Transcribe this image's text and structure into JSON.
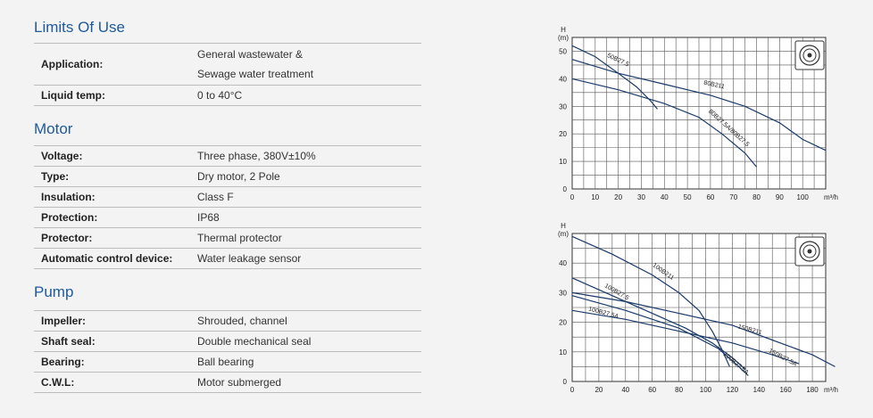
{
  "sections": {
    "limits": {
      "title": "Limits Of Use",
      "rows": [
        {
          "label": "Application:",
          "value_line1": "General wastewater &",
          "value_line2": "Sewage water treatment"
        },
        {
          "label": "Liquid temp:",
          "value": "0 to 40°C"
        }
      ]
    },
    "motor": {
      "title": "Motor",
      "rows": [
        {
          "label": "Voltage:",
          "value": "Three phase, 380V±10%"
        },
        {
          "label": "Type:",
          "value": "Dry motor, 2 Pole"
        },
        {
          "label": "Insulation:",
          "value": "Class F"
        },
        {
          "label": "Protection:",
          "value": "IP68"
        },
        {
          "label": "Protector:",
          "value": "Thermal protector"
        },
        {
          "label": "Automatic control device:",
          "value": "Water leakage sensor"
        }
      ]
    },
    "pump": {
      "title": "Pump",
      "rows": [
        {
          "label": "Impeller:",
          "value": "Shrouded, channel"
        },
        {
          "label": "Shaft seal:",
          "value": "Double mechanical seal"
        },
        {
          "label": "Bearing:",
          "value": "Ball bearing"
        },
        {
          "label": "C.W.L:",
          "value": "Motor submerged"
        }
      ]
    }
  },
  "icons": {
    "impeller": "impeller-icon"
  },
  "chart_data": [
    {
      "type": "line",
      "ylabel_top": "H",
      "ylabel_unit": "(m)",
      "xunit": "m³/h",
      "xlim": [
        0,
        110
      ],
      "ylim": [
        0,
        55
      ],
      "xticks": [
        0,
        10,
        20,
        30,
        40,
        50,
        60,
        70,
        80,
        90,
        100
      ],
      "xtick_labels": [
        "0",
        "10",
        "20",
        "30",
        "40",
        "50",
        "60",
        "70",
        "80",
        "90",
        "100"
      ],
      "yticks": [
        0,
        10,
        20,
        30,
        40,
        50
      ],
      "yminor": 5,
      "series": [
        {
          "name": "50B27.5",
          "x": [
            0,
            10,
            20,
            28,
            34,
            37
          ],
          "y": [
            52,
            48,
            42,
            37,
            32,
            29
          ]
        },
        {
          "name": "80B211",
          "x": [
            0,
            20,
            40,
            60,
            75,
            90,
            100,
            110
          ],
          "y": [
            47,
            42,
            38,
            34,
            30,
            24,
            18,
            14
          ]
        },
        {
          "name": "80B27.5A/80B27.5",
          "x": [
            0,
            20,
            40,
            55,
            65,
            75,
            80
          ],
          "y": [
            40,
            36,
            31,
            26,
            20,
            13,
            8
          ]
        }
      ]
    },
    {
      "type": "line",
      "ylabel_top": "H",
      "ylabel_unit": "(m)",
      "xunit": "m³/h",
      "xlim": [
        0,
        190
      ],
      "ylim": [
        0,
        50
      ],
      "xticks": [
        0,
        20,
        40,
        60,
        80,
        100,
        120,
        140,
        160,
        180
      ],
      "xtick_labels": [
        "0",
        "20",
        "40",
        "60",
        "80",
        "100",
        "120",
        "140",
        "160",
        "180"
      ],
      "yticks": [
        0,
        10,
        20,
        30,
        40
      ],
      "yminor": 5,
      "series": [
        {
          "name": "100B211",
          "x": [
            0,
            30,
            60,
            80,
            95,
            105,
            112,
            118
          ],
          "y": [
            49,
            43,
            36,
            30,
            24,
            17,
            11,
            5
          ]
        },
        {
          "name": "100B27.5",
          "x": [
            0,
            30,
            60,
            85,
            105,
            120,
            130
          ],
          "y": [
            35,
            29,
            23,
            18,
            13,
            8,
            4
          ]
        },
        {
          "name": "150B211",
          "x": [
            0,
            40,
            80,
            120,
            150,
            180,
            197
          ],
          "y": [
            30,
            27,
            23,
            19,
            14,
            9,
            5
          ]
        },
        {
          "name": "150B27.5A",
          "x": [
            0,
            40,
            80,
            120,
            150,
            170
          ],
          "y": [
            24,
            21,
            17,
            13,
            9,
            6
          ]
        },
        {
          "name": "100B27.5A",
          "x": [
            0,
            40,
            80,
            110,
            125,
            132
          ],
          "y": [
            29,
            24,
            18,
            11,
            5,
            2
          ]
        }
      ]
    }
  ]
}
